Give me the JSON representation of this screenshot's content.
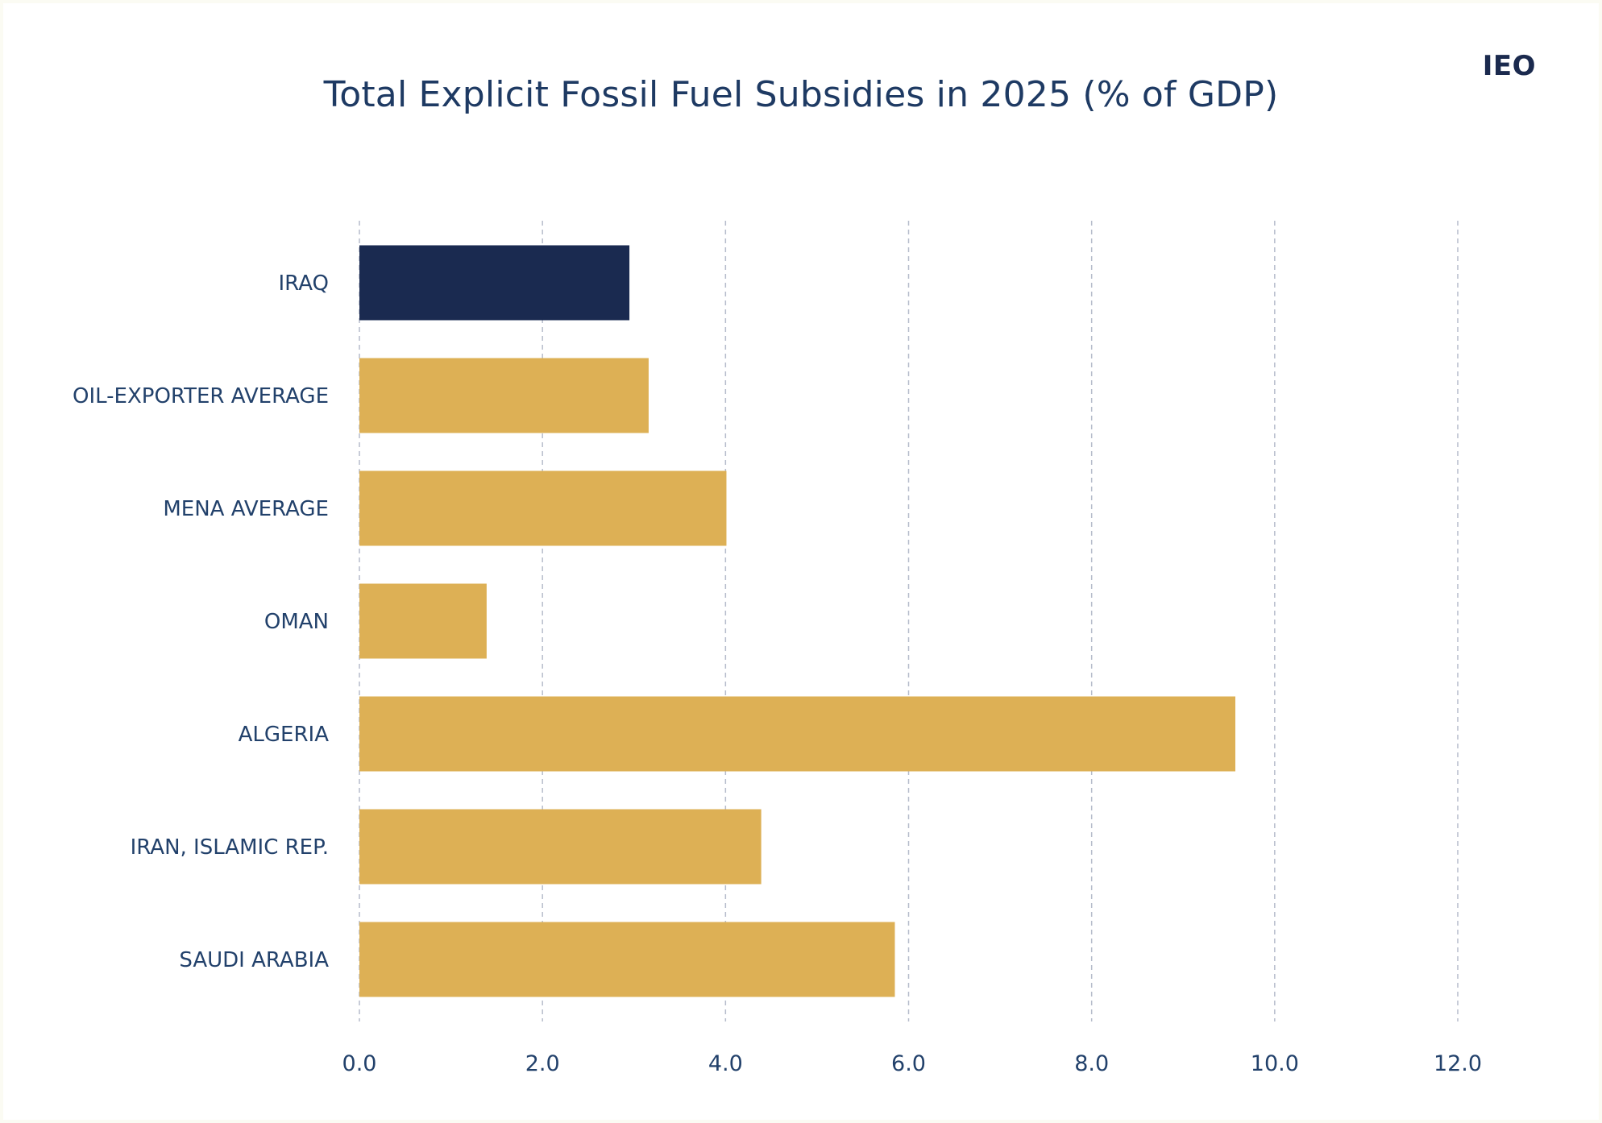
{
  "brand": "IEO",
  "colors": {
    "highlight": "#1a2a50",
    "bar": "#ddb055",
    "grid": "#b6bccb",
    "text": "#22416b"
  },
  "chart_data": {
    "type": "bar",
    "orientation": "horizontal",
    "title": "Total Explicit Fossil Fuel Subsidies in 2025 (% of GDP)",
    "xlabel": "",
    "ylabel": "",
    "xlim": [
      0,
      12
    ],
    "xticks": [
      "0.0",
      "2.0",
      "4.0",
      "6.0",
      "8.0",
      "10.0",
      "12.0"
    ],
    "grid": "vertical dashed",
    "legend": "none",
    "categories": [
      "IRAQ",
      "OIL-EXPORTER AVERAGE",
      "MENA AVERAGE",
      "OMAN",
      "ALGERIA",
      "IRAN, ISLAMIC REP.",
      "SAUDI ARABIA"
    ],
    "values": [
      2.95,
      3.16,
      4.01,
      1.39,
      9.57,
      4.39,
      5.85
    ],
    "highlight_category": "IRAQ"
  }
}
